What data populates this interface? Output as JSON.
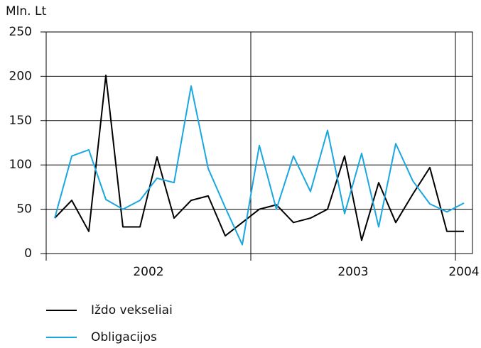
{
  "chart_data": {
    "type": "line",
    "y_label": "Mln. Lt",
    "x": [
      0,
      1,
      2,
      3,
      4,
      5,
      6,
      7,
      8,
      9,
      10,
      11,
      12,
      13,
      14,
      15,
      16,
      17,
      18,
      19,
      20,
      21,
      22,
      23,
      24
    ],
    "xlim": [
      -0.5,
      24.5
    ],
    "xticks": [
      {
        "value": 5.5,
        "label": "2002"
      },
      {
        "value": 17.5,
        "label": "2003"
      },
      {
        "value": 24,
        "label": "2004"
      }
    ],
    "year_dividers": [
      -0.5,
      11.5,
      23.5
    ],
    "ylim": [
      0,
      250
    ],
    "yticks": [
      0,
      50,
      100,
      150,
      200,
      250
    ],
    "grid": true,
    "series": [
      {
        "name": "Iždo vekseliai",
        "color": "#000000",
        "values": [
          40,
          60,
          25,
          201,
          30,
          30,
          109,
          40,
          60,
          65,
          20,
          35,
          50,
          55,
          35,
          40,
          50,
          110,
          15,
          80,
          35,
          67,
          97,
          25,
          25
        ]
      },
      {
        "name": "Obligacijos",
        "color": "#1aa7e0",
        "values": [
          40,
          110,
          117,
          61,
          50,
          60,
          85,
          80,
          189,
          96,
          52,
          10,
          122,
          50,
          110,
          70,
          139,
          45,
          113,
          30,
          124,
          82,
          56,
          47,
          57
        ]
      }
    ]
  }
}
